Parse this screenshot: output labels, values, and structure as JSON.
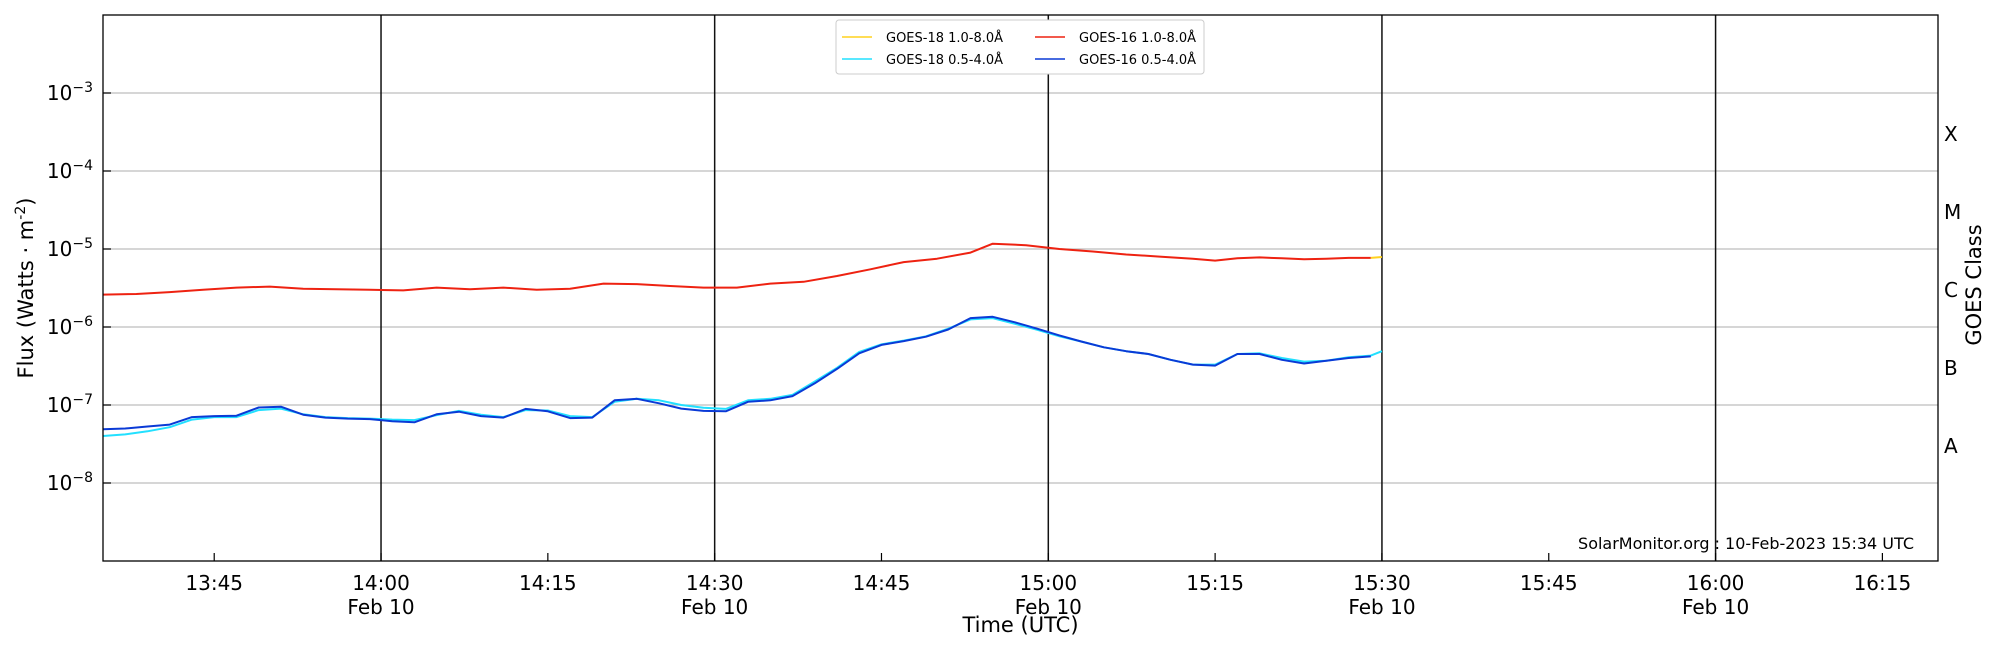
{
  "chart_data": {
    "type": "line",
    "title": "",
    "xlabel": "Time (UTC)",
    "ylabel": "Flux (Watts · m",
    "ylabel_superscript": "-2",
    "ylabel_suffix": ")",
    "right_ylabel": "GOES Class",
    "y_scale": "log",
    "ylim": [
      1e-09,
      0.01
    ],
    "y_ticks": [
      {
        "exp": -8,
        "label_base": "10",
        "label_exp": "−8"
      },
      {
        "exp": -7,
        "label_base": "10",
        "label_exp": "−7"
      },
      {
        "exp": -6,
        "label_base": "10",
        "label_exp": "−6"
      },
      {
        "exp": -5,
        "label_base": "10",
        "label_exp": "−5"
      },
      {
        "exp": -4,
        "label_base": "10",
        "label_exp": "−4"
      },
      {
        "exp": -3,
        "label_base": "10",
        "label_exp": "−3"
      }
    ],
    "goes_classes": [
      {
        "label": "A",
        "flux": 3e-08
      },
      {
        "label": "B",
        "flux": 3e-07
      },
      {
        "label": "C",
        "flux": 3e-06
      },
      {
        "label": "M",
        "flux": 3e-05
      },
      {
        "label": "X",
        "flux": 0.0003
      }
    ],
    "xlim": [
      "13:35",
      "16:20"
    ],
    "x_ticks": [
      {
        "time": "13:45",
        "line1": "13:45",
        "line2": ""
      },
      {
        "time": "14:00",
        "line1": "14:00",
        "line2": "Feb 10"
      },
      {
        "time": "14:15",
        "line1": "14:15",
        "line2": ""
      },
      {
        "time": "14:30",
        "line1": "14:30",
        "line2": "Feb 10"
      },
      {
        "time": "14:45",
        "line1": "14:45",
        "line2": ""
      },
      {
        "time": "15:00",
        "line1": "15:00",
        "line2": "Feb 10"
      },
      {
        "time": "15:15",
        "line1": "15:15",
        "line2": ""
      },
      {
        "time": "15:30",
        "line1": "15:30",
        "line2": "Feb 10"
      },
      {
        "time": "15:45",
        "line1": "15:45",
        "line2": ""
      },
      {
        "time": "16:00",
        "line1": "16:00",
        "line2": "Feb 10"
      },
      {
        "time": "16:15",
        "line1": "16:15",
        "line2": ""
      }
    ],
    "vertical_lines": [
      "14:00",
      "14:30",
      "15:00",
      "15:30",
      "16:00"
    ],
    "grid": "horizontal at decades",
    "legend_position": "top-center",
    "watermark": "SolarMonitor.org : 10-Feb-2023 15:34 UTC",
    "series": [
      {
        "name": "GOES-18 1.0-8.0Å",
        "color": "#ffd21f",
        "x": [
          "15:29",
          "15:30"
        ],
        "y": [
          7.7e-06,
          7.9e-06
        ]
      },
      {
        "name": "GOES-18 0.5-4.0Å",
        "color": "#22e0ff",
        "x": [
          "13:35",
          "13:37",
          "13:39",
          "13:41",
          "13:43",
          "13:45",
          "13:47",
          "13:49",
          "13:51",
          "13:53",
          "13:55",
          "13:57",
          "13:59",
          "14:01",
          "14:03",
          "14:05",
          "14:07",
          "14:09",
          "14:11",
          "14:13",
          "14:15",
          "14:17",
          "14:19",
          "14:21",
          "14:23",
          "14:25",
          "14:27",
          "14:29",
          "14:31",
          "14:33",
          "14:35",
          "14:37",
          "14:39",
          "14:41",
          "14:43",
          "14:45",
          "14:47",
          "14:49",
          "14:51",
          "14:53",
          "14:55",
          "14:57",
          "14:59",
          "15:01",
          "15:03",
          "15:05",
          "15:07",
          "15:09",
          "15:11",
          "15:13",
          "15:15",
          "15:17",
          "15:19",
          "15:21",
          "15:23",
          "15:25",
          "15:27",
          "15:29",
          "15:30"
        ],
        "y": [
          4e-08,
          4.2e-08,
          4.6e-08,
          5.2e-08,
          6.5e-08,
          7e-08,
          7e-08,
          8.6e-08,
          9e-08,
          7.6e-08,
          7e-08,
          6.8e-08,
          6.7e-08,
          6.5e-08,
          6.4e-08,
          7.4e-08,
          8.4e-08,
          7.5e-08,
          7e-08,
          8.6e-08,
          8.5e-08,
          7.2e-08,
          7e-08,
          1.1e-07,
          1.2e-07,
          1.15e-07,
          1e-07,
          9.2e-08,
          8.9e-08,
          1.15e-07,
          1.2e-07,
          1.35e-07,
          2e-07,
          3e-07,
          4.8e-07,
          6e-07,
          6.7e-07,
          7.6e-07,
          9.5e-07,
          1.25e-06,
          1.3e-06,
          1.1e-06,
          9.2e-07,
          7.6e-07,
          6.5e-07,
          5.5e-07,
          4.9e-07,
          4.5e-07,
          3.8e-07,
          3.3e-07,
          3.3e-07,
          4.5e-07,
          4.6e-07,
          4e-07,
          3.6e-07,
          3.7e-07,
          4.1e-07,
          4.3e-07,
          4.9e-07
        ]
      },
      {
        "name": "GOES-16 1.0-8.0Å",
        "color": "#ee2211",
        "x": [
          "13:35",
          "13:38",
          "13:41",
          "13:44",
          "13:47",
          "13:50",
          "13:53",
          "13:56",
          "13:59",
          "14:02",
          "14:05",
          "14:08",
          "14:11",
          "14:14",
          "14:17",
          "14:20",
          "14:23",
          "14:26",
          "14:29",
          "14:32",
          "14:35",
          "14:38",
          "14:41",
          "14:44",
          "14:47",
          "14:50",
          "14:53",
          "14:55",
          "14:58",
          "15:01",
          "15:04",
          "15:07",
          "15:10",
          "15:13",
          "15:15",
          "15:17",
          "15:19",
          "15:21",
          "15:23",
          "15:25",
          "15:27",
          "15:29"
        ],
        "y": [
          2.6e-06,
          2.65e-06,
          2.8e-06,
          3e-06,
          3.2e-06,
          3.3e-06,
          3.1e-06,
          3.05e-06,
          3e-06,
          2.95e-06,
          3.2e-06,
          3.05e-06,
          3.2e-06,
          3e-06,
          3.1e-06,
          3.6e-06,
          3.55e-06,
          3.35e-06,
          3.2e-06,
          3.2e-06,
          3.6e-06,
          3.8e-06,
          4.5e-06,
          5.5e-06,
          6.8e-06,
          7.5e-06,
          9e-06,
          1.17e-05,
          1.12e-05,
          1e-05,
          9.3e-06,
          8.5e-06,
          8e-06,
          7.5e-06,
          7.1e-06,
          7.6e-06,
          7.8e-06,
          7.6e-06,
          7.4e-06,
          7.5e-06,
          7.7e-06,
          7.7e-06
        ]
      },
      {
        "name": "GOES-16 0.5-4.0Å",
        "color": "#0a3ad6",
        "x": [
          "13:35",
          "13:37",
          "13:39",
          "13:41",
          "13:43",
          "13:45",
          "13:47",
          "13:49",
          "13:51",
          "13:53",
          "13:55",
          "13:57",
          "13:59",
          "14:01",
          "14:03",
          "14:05",
          "14:07",
          "14:09",
          "14:11",
          "14:13",
          "14:15",
          "14:17",
          "14:19",
          "14:21",
          "14:23",
          "14:25",
          "14:27",
          "14:29",
          "14:31",
          "14:33",
          "14:35",
          "14:37",
          "14:39",
          "14:41",
          "14:43",
          "14:45",
          "14:47",
          "14:49",
          "14:51",
          "14:53",
          "14:55",
          "14:57",
          "14:59",
          "15:01",
          "15:03",
          "15:05",
          "15:07",
          "15:09",
          "15:11",
          "15:13",
          "15:15",
          "15:17",
          "15:19",
          "15:21",
          "15:23",
          "15:25",
          "15:27",
          "15:29"
        ],
        "y": [
          4.9e-08,
          5e-08,
          5.3e-08,
          5.6e-08,
          7e-08,
          7.2e-08,
          7.3e-08,
          9.3e-08,
          9.5e-08,
          7.5e-08,
          6.9e-08,
          6.7e-08,
          6.6e-08,
          6.2e-08,
          6e-08,
          7.6e-08,
          8.2e-08,
          7.2e-08,
          6.9e-08,
          8.9e-08,
          8.3e-08,
          6.8e-08,
          6.9e-08,
          1.15e-07,
          1.2e-07,
          1.05e-07,
          9e-08,
          8.4e-08,
          8.3e-08,
          1.1e-07,
          1.15e-07,
          1.3e-07,
          1.9e-07,
          2.9e-07,
          4.6e-07,
          5.9e-07,
          6.6e-07,
          7.5e-07,
          9.3e-07,
          1.3e-06,
          1.35e-06,
          1.15e-06,
          9.5e-07,
          7.8e-07,
          6.5e-07,
          5.5e-07,
          4.9e-07,
          4.5e-07,
          3.8e-07,
          3.3e-07,
          3.2e-07,
          4.5e-07,
          4.5e-07,
          3.8e-07,
          3.4e-07,
          3.7e-07,
          4e-07,
          4.2e-07
        ]
      }
    ]
  }
}
